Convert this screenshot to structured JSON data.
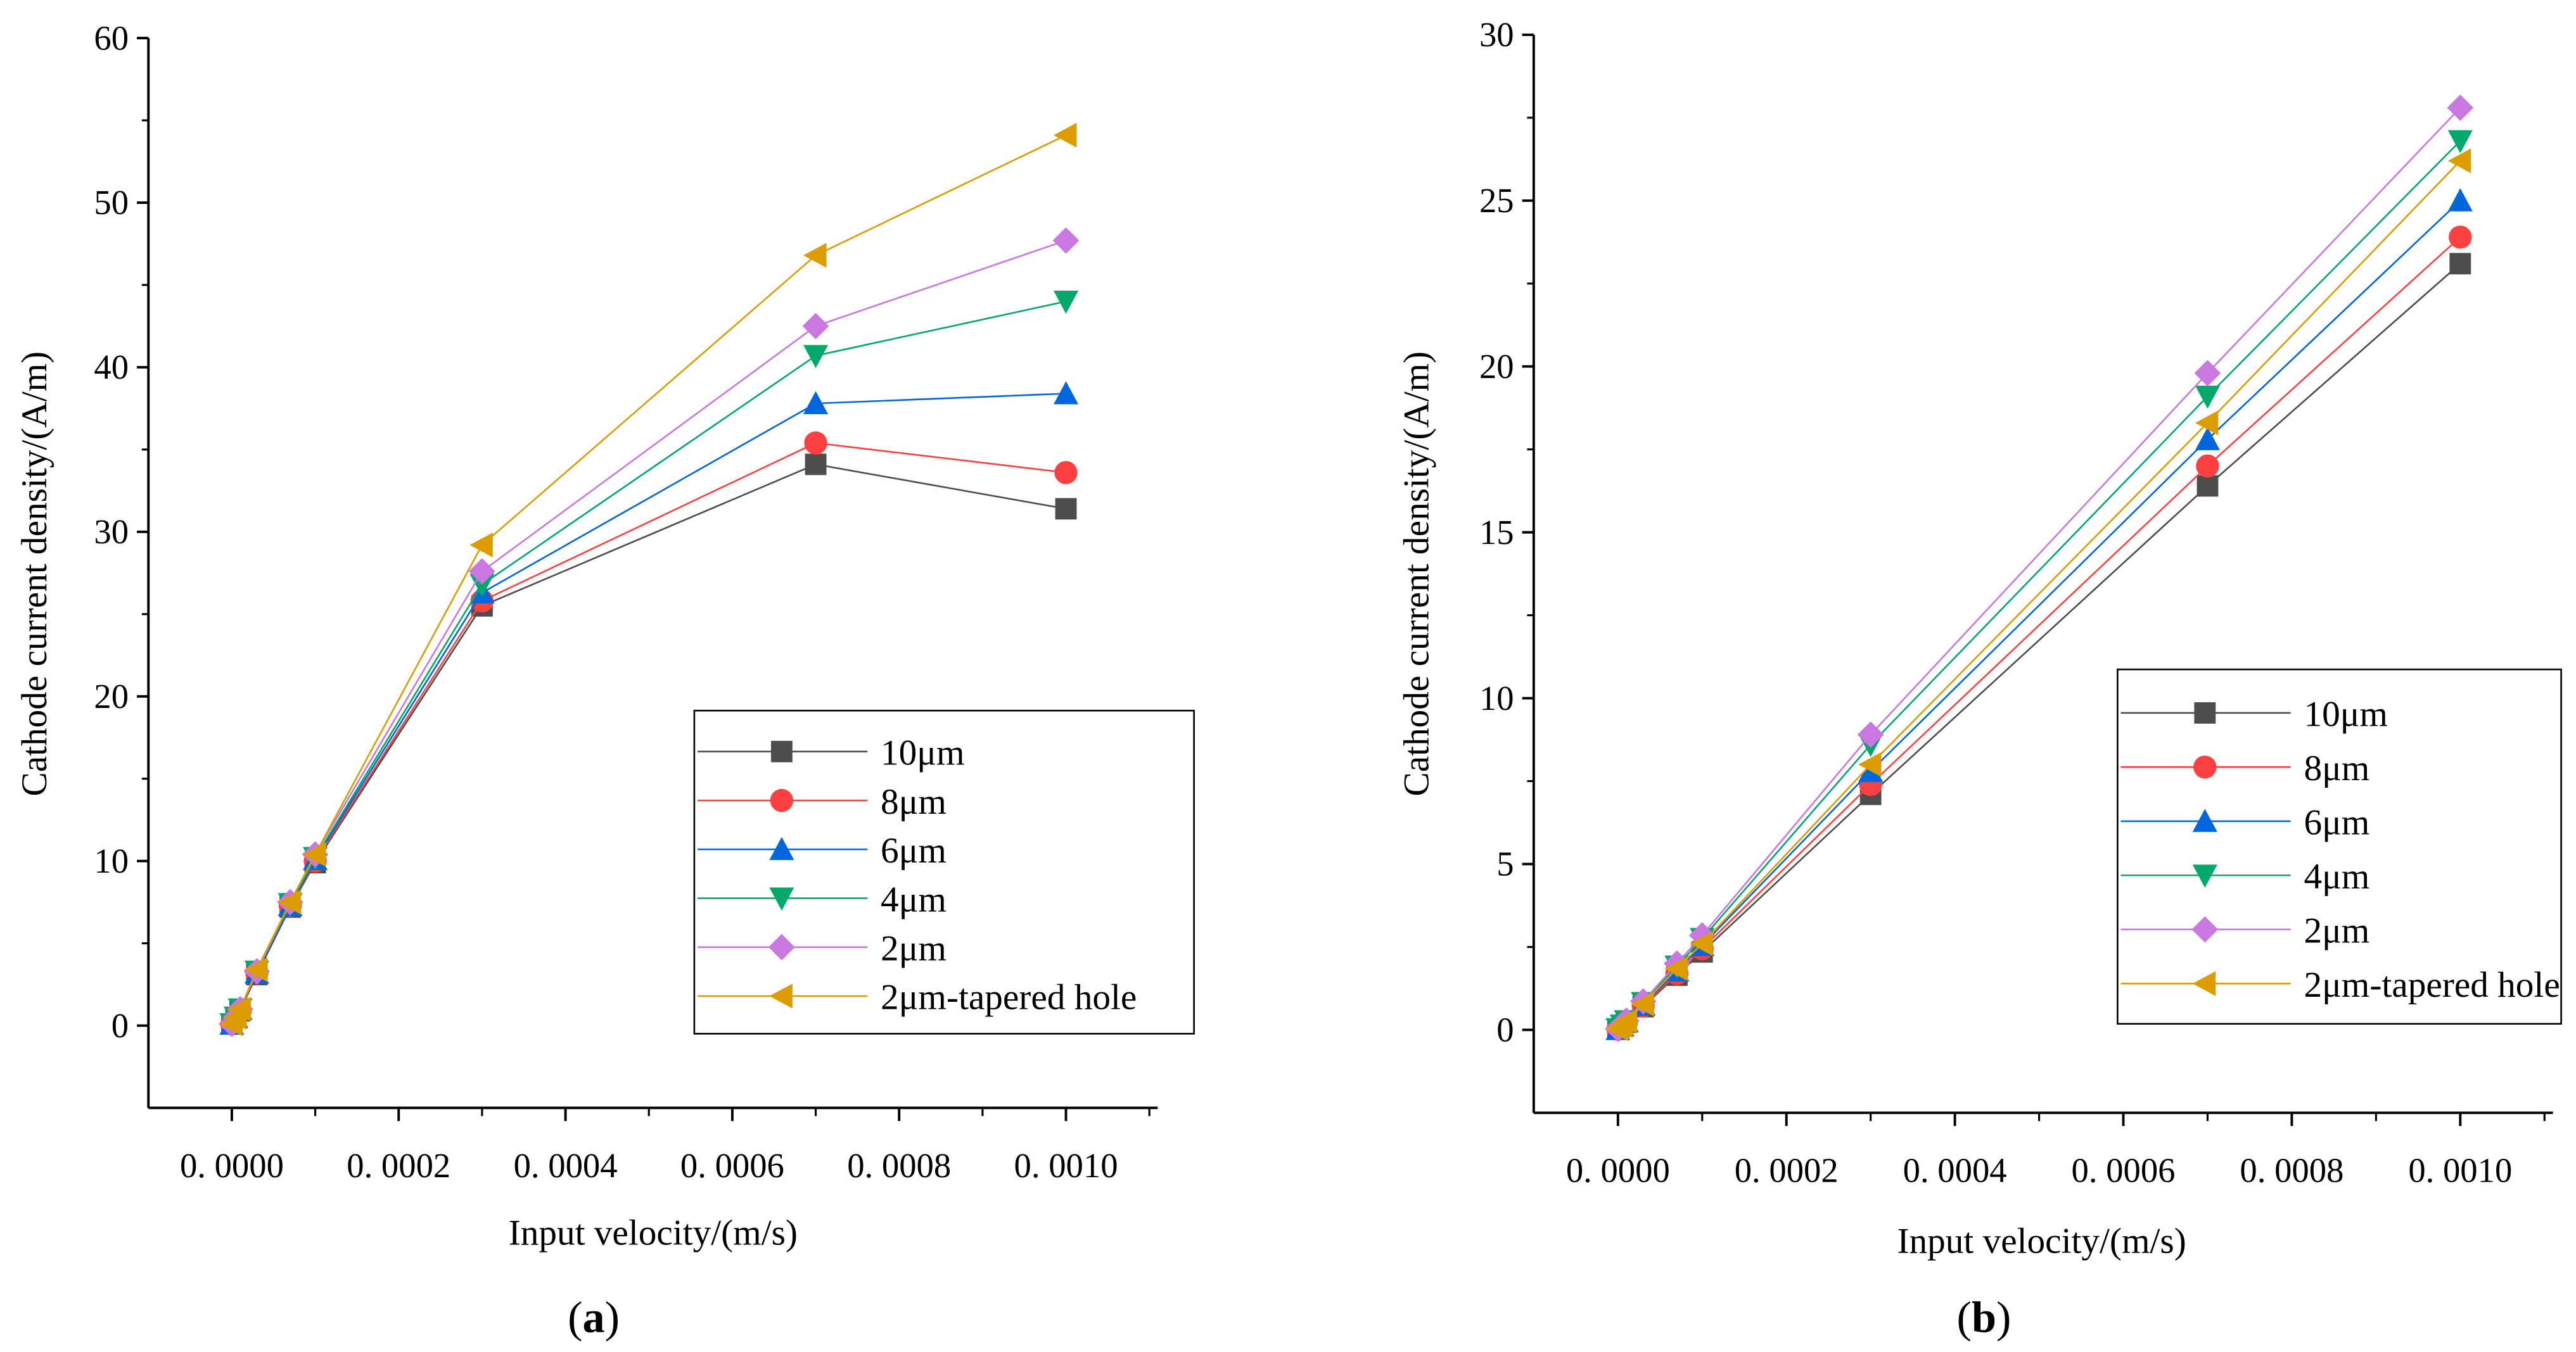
{
  "colors": {
    "10um": "#4d4d4d",
    "8um": "#ff4040",
    "6um": "#0066dd",
    "4um": "#00a86b",
    "2um": "#c878e0",
    "tapered": "#dd9c00"
  },
  "chart_data": [
    {
      "type": "line",
      "panel_label": "a",
      "xlabel": "Input velocity/(m/s)",
      "ylabel": "Cathode current density/(A/m)",
      "xlim": [
        -0.0001,
        0.00111
      ],
      "ylim": [
        -5,
        60
      ],
      "xticks": [
        0,
        0.0002,
        0.0004,
        0.0006,
        0.0008,
        0.001
      ],
      "xtick_labels": [
        "0. 0000",
        "0. 0002",
        "0. 0004",
        "0. 0006",
        "0. 0008",
        "0. 0010"
      ],
      "yticks": [
        0,
        10,
        20,
        30,
        40,
        50,
        60
      ],
      "ytick_labels": [
        "0",
        "10",
        "20",
        "30",
        "40",
        "50",
        "60"
      ],
      "legend_position": "lower-right",
      "x": [
        0,
        5e-06,
        1e-05,
        3e-05,
        7e-05,
        0.0001,
        0.0003,
        0.0007,
        0.001
      ],
      "series": [
        {
          "name": "10μm",
          "marker": "square",
          "color_key": "10um",
          "values": [
            0.1,
            0.5,
            0.9,
            3.1,
            7.2,
            9.9,
            25.5,
            34.1,
            31.4
          ]
        },
        {
          "name": "8μm",
          "marker": "circle",
          "color_key": "8um",
          "values": [
            0.1,
            0.5,
            0.9,
            3.2,
            7.3,
            10.0,
            25.8,
            35.4,
            33.6
          ]
        },
        {
          "name": "6μm",
          "marker": "triangle-up",
          "color_key": "6um",
          "values": [
            0.1,
            0.5,
            1.0,
            3.2,
            7.3,
            10.1,
            26.3,
            37.8,
            38.4
          ]
        },
        {
          "name": "4μm",
          "marker": "triangle-down",
          "color_key": "4um",
          "values": [
            0.1,
            0.5,
            1.0,
            3.3,
            7.4,
            10.2,
            26.8,
            40.7,
            44.0
          ]
        },
        {
          "name": "2μm",
          "marker": "diamond",
          "color_key": "2um",
          "values": [
            0.1,
            0.5,
            1.0,
            3.3,
            7.5,
            10.4,
            27.6,
            42.5,
            47.7
          ]
        },
        {
          "name": "2μm-tapered hole",
          "marker": "triangle-left",
          "color_key": "tapered",
          "values": [
            0.1,
            0.5,
            1.0,
            3.4,
            7.5,
            10.4,
            29.2,
            46.8,
            54.1
          ]
        }
      ]
    },
    {
      "type": "line",
      "panel_label": "b",
      "xlabel": "Input velocity/(m/s)",
      "ylabel": "Cathode current density/(A/m)",
      "xlim": [
        -0.0001,
        0.00111
      ],
      "ylim": [
        -2.5,
        30
      ],
      "xticks": [
        0,
        0.0002,
        0.0004,
        0.0006,
        0.0008,
        0.001
      ],
      "xtick_labels": [
        "0. 0000",
        "0. 0002",
        "0. 0004",
        "0. 0006",
        "0. 0008",
        "0. 0010"
      ],
      "yticks": [
        0,
        5,
        10,
        15,
        20,
        25,
        30
      ],
      "ytick_labels": [
        "0",
        "5",
        "10",
        "15",
        "20",
        "25",
        "30"
      ],
      "legend_position": "lower-right",
      "x": [
        0,
        5e-06,
        1e-05,
        3e-05,
        7e-05,
        0.0001,
        0.0003,
        0.0007,
        0.001
      ],
      "series": [
        {
          "name": "10μm",
          "marker": "square",
          "color_key": "10um",
          "values": [
            0.02,
            0.12,
            0.23,
            0.7,
            1.65,
            2.35,
            7.1,
            16.4,
            23.1
          ]
        },
        {
          "name": "8μm",
          "marker": "circle",
          "color_key": "8um",
          "values": [
            0.02,
            0.12,
            0.24,
            0.72,
            1.7,
            2.45,
            7.4,
            17.0,
            23.9
          ]
        },
        {
          "name": "6μm",
          "marker": "triangle-up",
          "color_key": "6um",
          "values": [
            0.02,
            0.13,
            0.25,
            0.75,
            1.78,
            2.55,
            7.8,
            17.8,
            25.0
          ]
        },
        {
          "name": "4μm",
          "marker": "triangle-down",
          "color_key": "4um",
          "values": [
            0.03,
            0.14,
            0.27,
            0.82,
            1.92,
            2.75,
            8.6,
            19.1,
            26.8
          ]
        },
        {
          "name": "2μm",
          "marker": "diamond",
          "color_key": "2um",
          "values": [
            0.03,
            0.15,
            0.28,
            0.86,
            2.0,
            2.85,
            8.9,
            19.8,
            27.8
          ]
        },
        {
          "name": "2μm-tapered hole",
          "marker": "triangle-left",
          "color_key": "tapered",
          "values": [
            0.03,
            0.13,
            0.26,
            0.78,
            1.85,
            2.6,
            8.0,
            18.3,
            26.2
          ]
        }
      ]
    }
  ]
}
